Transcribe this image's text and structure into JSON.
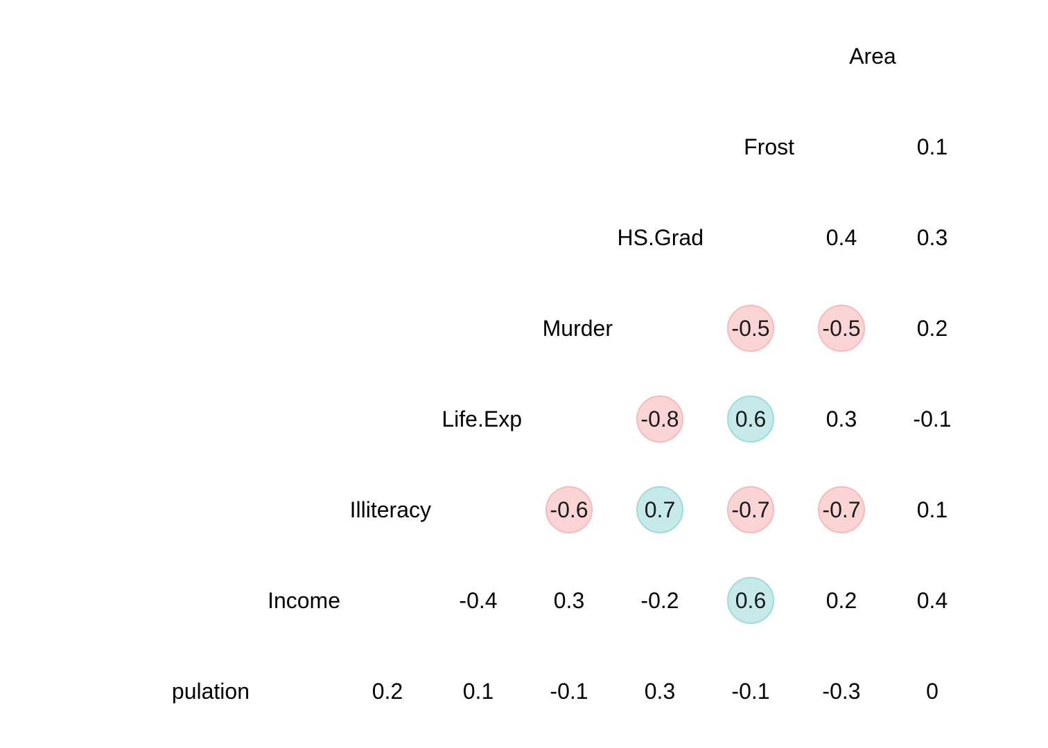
{
  "chart_data": {
    "type": "heatmap",
    "title": "",
    "xlabel": "",
    "ylabel": "",
    "variables": [
      "Population",
      "Income",
      "Illiteracy",
      "Life.Exp",
      "Murder",
      "HS.Grad",
      "Frost",
      "Area"
    ],
    "variable_labels": [
      "pulation",
      "Income",
      "Illiteracy",
      "Life.Exp",
      "Murder",
      "HS.Grad",
      "Frost",
      "Area"
    ],
    "cells": [
      {
        "row": "Frost",
        "col": "Area",
        "value": 0.1,
        "label": "0.1"
      },
      {
        "row": "HS.Grad",
        "col": "Frost",
        "value": 0.4,
        "label": "0.4"
      },
      {
        "row": "HS.Grad",
        "col": "Area",
        "value": 0.3,
        "label": "0.3"
      },
      {
        "row": "Murder",
        "col": "HS.Grad",
        "value": -0.5,
        "label": "-0.5"
      },
      {
        "row": "Murder",
        "col": "Frost",
        "value": -0.5,
        "label": "-0.5"
      },
      {
        "row": "Murder",
        "col": "Area",
        "value": 0.2,
        "label": "0.2"
      },
      {
        "row": "Life.Exp",
        "col": "Murder",
        "value": -0.8,
        "label": "-0.8"
      },
      {
        "row": "Life.Exp",
        "col": "HS.Grad",
        "value": 0.6,
        "label": "0.6"
      },
      {
        "row": "Life.Exp",
        "col": "Frost",
        "value": 0.3,
        "label": "0.3"
      },
      {
        "row": "Life.Exp",
        "col": "Area",
        "value": -0.1,
        "label": "-0.1"
      },
      {
        "row": "Illiteracy",
        "col": "Life.Exp",
        "value": -0.6,
        "label": "-0.6"
      },
      {
        "row": "Illiteracy",
        "col": "Murder",
        "value": 0.7,
        "label": "0.7"
      },
      {
        "row": "Illiteracy",
        "col": "HS.Grad",
        "value": -0.7,
        "label": "-0.7"
      },
      {
        "row": "Illiteracy",
        "col": "Frost",
        "value": -0.7,
        "label": "-0.7"
      },
      {
        "row": "Illiteracy",
        "col": "Area",
        "value": 0.1,
        "label": "0.1"
      },
      {
        "row": "Income",
        "col": "Illiteracy",
        "value": -0.4,
        "label": "-0.4"
      },
      {
        "row": "Income",
        "col": "Life.Exp",
        "value": 0.3,
        "label": "0.3"
      },
      {
        "row": "Income",
        "col": "Murder",
        "value": -0.2,
        "label": "-0.2"
      },
      {
        "row": "Income",
        "col": "HS.Grad",
        "value": 0.6,
        "label": "0.6"
      },
      {
        "row": "Income",
        "col": "Frost",
        "value": 0.2,
        "label": "0.2"
      },
      {
        "row": "Income",
        "col": "Area",
        "value": 0.4,
        "label": "0.4"
      },
      {
        "row": "Population",
        "col": "Income",
        "value": 0.2,
        "label": "0.2"
      },
      {
        "row": "Population",
        "col": "Illiteracy",
        "value": 0.1,
        "label": "0.1"
      },
      {
        "row": "Population",
        "col": "Life.Exp",
        "value": -0.1,
        "label": "-0.1"
      },
      {
        "row": "Population",
        "col": "Murder",
        "value": 0.3,
        "label": "0.3"
      },
      {
        "row": "Population",
        "col": "HS.Grad",
        "value": -0.1,
        "label": "-0.1"
      },
      {
        "row": "Population",
        "col": "Frost",
        "value": -0.3,
        "label": "-0.3"
      },
      {
        "row": "Population",
        "col": "Area",
        "value": 0,
        "label": "0"
      }
    ],
    "highlight_threshold": 0.5,
    "positive_color": "#9edcda",
    "negative_color": "#f8b9b9",
    "grid": false,
    "legend": "none"
  }
}
